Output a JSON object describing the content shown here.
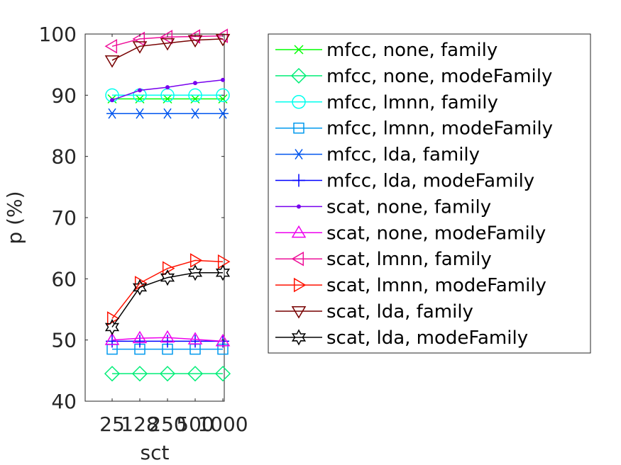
{
  "chart_data": {
    "type": "line",
    "xlabel": "sct",
    "ylabel": "p (%)",
    "x": [
      "25",
      "128",
      "250",
      "500",
      "1000"
    ],
    "ylim": [
      40,
      100
    ],
    "yticks": [
      40,
      50,
      60,
      70,
      80,
      90,
      100
    ],
    "grid": false,
    "legend_position": "outside-right",
    "series": [
      {
        "name": "mfcc, none, family",
        "color": "#00ff00",
        "marker": "x",
        "values": [
          89.4,
          89.4,
          89.4,
          89.4,
          89.4
        ]
      },
      {
        "name": "mfcc, none, modeFamily",
        "color": "#00ee77",
        "marker": "diamond",
        "values": [
          44.5,
          44.5,
          44.5,
          44.5,
          44.5
        ]
      },
      {
        "name": "mfcc, lmnn, family",
        "color": "#00ffee",
        "marker": "circle",
        "values": [
          90.0,
          90.0,
          90.0,
          90.0,
          90.0
        ]
      },
      {
        "name": "mfcc, lmnn, modeFamily",
        "color": "#0099ee",
        "marker": "square",
        "values": [
          48.5,
          48.5,
          48.5,
          48.5,
          48.5
        ]
      },
      {
        "name": "mfcc, lda, family",
        "color": "#0055ee",
        "marker": "asterisk",
        "values": [
          87.0,
          87.0,
          87.0,
          87.0,
          87.0
        ]
      },
      {
        "name": "mfcc, lda, modeFamily",
        "color": "#0000ff",
        "marker": "plus",
        "values": [
          49.8,
          49.8,
          49.8,
          49.8,
          49.8
        ]
      },
      {
        "name": "scat, none, family",
        "color": "#7700ee",
        "marker": "dot",
        "values": [
          89.2,
          90.8,
          91.3,
          92.0,
          92.5
        ]
      },
      {
        "name": "scat, none, modeFamily",
        "color": "#ee00ee",
        "marker": "triangle-up",
        "values": [
          50.0,
          50.3,
          50.4,
          50.1,
          49.8
        ]
      },
      {
        "name": "scat, lmnn, family",
        "color": "#ee1199",
        "marker": "triangle-left",
        "values": [
          98.0,
          99.2,
          99.5,
          99.6,
          99.7
        ]
      },
      {
        "name": "scat, lmnn, modeFamily",
        "color": "#ff1100",
        "marker": "triangle-right",
        "values": [
          53.5,
          59.3,
          61.7,
          63.0,
          62.8
        ]
      },
      {
        "name": "scat, lda, family",
        "color": "#770000",
        "marker": "triangle-down",
        "values": [
          95.7,
          98.0,
          98.5,
          99.0,
          99.2
        ]
      },
      {
        "name": "scat, lda, modeFamily",
        "color": "#000000",
        "marker": "hexagram",
        "values": [
          52.1,
          58.6,
          60.2,
          61.0,
          61.0
        ]
      }
    ]
  }
}
